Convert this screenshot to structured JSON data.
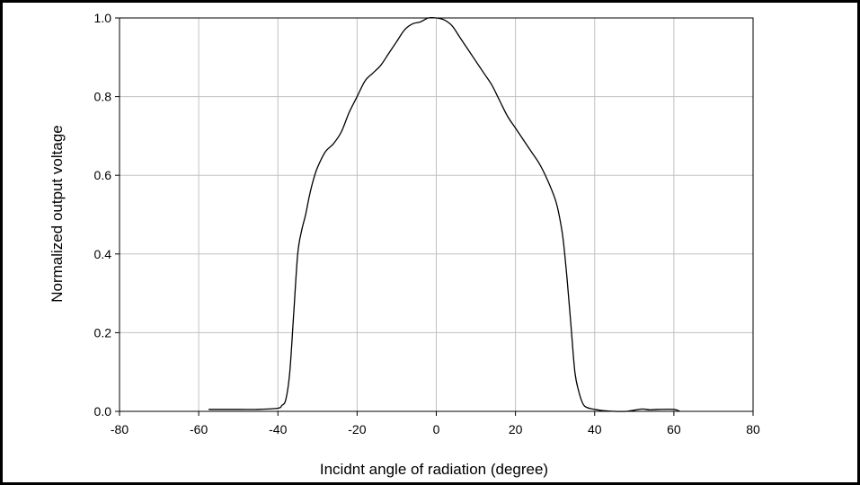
{
  "chart_data": {
    "type": "line",
    "title": "",
    "xlabel": "Incidnt angle of radiation (degree)",
    "ylabel": "Normalized output voltage",
    "xlim": [
      -80,
      80
    ],
    "ylim": [
      0.0,
      1.0
    ],
    "x_ticks": [
      "-80",
      "-60",
      "-40",
      "-20",
      "0",
      "20",
      "40",
      "60",
      "80"
    ],
    "y_ticks": [
      "0.0",
      "0.2",
      "0.4",
      "0.6",
      "0.8",
      "1.0"
    ],
    "grid": true,
    "legend": "none",
    "line_color": "#000000",
    "grid_color": "#c0c0c0",
    "series": [
      {
        "x": [
          -57.5,
          -50,
          -45,
          -40,
          -39,
          -38,
          -37,
          -36,
          -35,
          -34,
          -33,
          -32,
          -31,
          -30,
          -28,
          -26,
          -24,
          -22,
          -20,
          -18,
          -16,
          -14,
          -12,
          -10,
          -8,
          -6,
          -4,
          -2,
          0,
          2,
          4,
          6,
          8,
          10,
          12,
          14,
          16,
          18,
          20,
          22,
          24,
          26,
          28,
          30,
          31,
          32,
          33,
          34,
          35,
          36,
          37,
          38,
          40,
          42,
          45,
          48,
          50,
          52,
          54,
          56,
          60,
          61.5
        ],
        "y": [
          0.005,
          0.005,
          0.005,
          0.008,
          0.015,
          0.03,
          0.1,
          0.25,
          0.4,
          0.46,
          0.5,
          0.55,
          0.59,
          0.62,
          0.66,
          0.68,
          0.71,
          0.76,
          0.8,
          0.84,
          0.86,
          0.88,
          0.91,
          0.94,
          0.97,
          0.985,
          0.99,
          1.0,
          1.0,
          0.995,
          0.98,
          0.95,
          0.92,
          0.89,
          0.86,
          0.83,
          0.79,
          0.75,
          0.72,
          0.69,
          0.66,
          0.63,
          0.59,
          0.54,
          0.5,
          0.44,
          0.34,
          0.22,
          0.1,
          0.05,
          0.02,
          0.01,
          0.005,
          0.002,
          0.0,
          0.0,
          0.003,
          0.006,
          0.004,
          0.005,
          0.005,
          0.0
        ]
      }
    ]
  }
}
